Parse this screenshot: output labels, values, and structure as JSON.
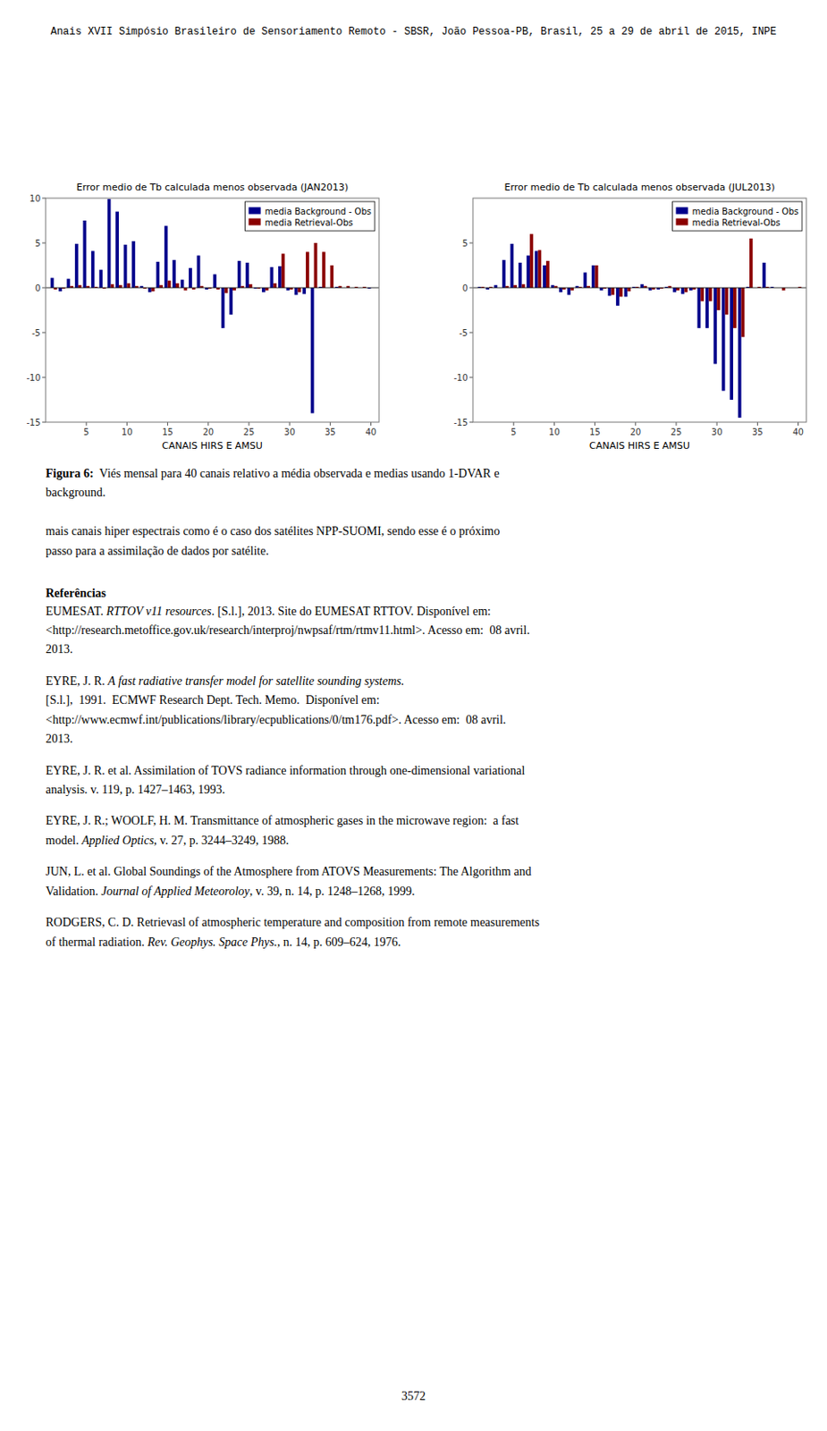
{
  "chart_data": [
    {
      "type": "bar",
      "title": "Error medio de Tb calculada menos observada (JAN2013)",
      "xlabel": "CANAIS HIRS E AMSU",
      "x": [
        1,
        2,
        3,
        4,
        5,
        6,
        7,
        8,
        9,
        10,
        11,
        12,
        13,
        14,
        15,
        16,
        17,
        18,
        19,
        20,
        21,
        22,
        23,
        24,
        25,
        26,
        27,
        28,
        29,
        30,
        31,
        32,
        33,
        34,
        35,
        36,
        37,
        38,
        39,
        40
      ],
      "xlim": [
        0,
        41
      ],
      "xticks": [
        5,
        10,
        15,
        20,
        25,
        30,
        35,
        40
      ],
      "ylim": [
        -15,
        10
      ],
      "yticks": [
        -15,
        -10,
        -5,
        0,
        5,
        10
      ],
      "legend": "upper right",
      "series": [
        {
          "name": "media Background - Obs",
          "color": "#00008B",
          "values": [
            1.1,
            -0.4,
            1.0,
            4.9,
            7.5,
            4.1,
            2.0,
            9.9,
            8.5,
            4.8,
            5.2,
            0.2,
            -0.5,
            2.9,
            6.9,
            3.1,
            0.9,
            2.2,
            3.6,
            -0.2,
            1.5,
            -4.5,
            -3.0,
            3.0,
            2.8,
            -0.1,
            -0.5,
            2.3,
            2.4,
            -0.3,
            -0.8,
            -0.7,
            -14.0,
            0.1,
            0.0,
            0.1,
            0.0,
            0.0,
            0.0,
            -0.1
          ]
        },
        {
          "name": "media Retrieval-Obs",
          "color": "#8B0000",
          "values": [
            -0.2,
            -0.1,
            0.2,
            0.3,
            0.2,
            0.1,
            -0.1,
            0.4,
            0.3,
            0.5,
            0.2,
            -0.1,
            -0.4,
            0.3,
            0.8,
            0.5,
            -0.3,
            -0.2,
            0.2,
            -0.1,
            -0.2,
            -0.6,
            -0.3,
            0.2,
            0.4,
            -0.1,
            -0.3,
            0.5,
            3.8,
            -0.2,
            -0.5,
            4.0,
            5.0,
            4.0,
            2.5,
            0.2,
            0.2,
            0.1,
            0.1,
            0.0
          ]
        }
      ]
    },
    {
      "type": "bar",
      "title": "Error medio de Tb calculada menos observada (JUL2013)",
      "xlabel": "CANAIS HIRS E AMSU",
      "x": [
        1,
        2,
        3,
        4,
        5,
        6,
        7,
        8,
        9,
        10,
        11,
        12,
        13,
        14,
        15,
        16,
        17,
        18,
        19,
        20,
        21,
        22,
        23,
        24,
        25,
        26,
        27,
        28,
        29,
        30,
        31,
        32,
        33,
        34,
        35,
        36,
        37,
        38,
        39,
        40
      ],
      "xlim": [
        0,
        41
      ],
      "xticks": [
        5,
        10,
        15,
        20,
        25,
        30,
        35,
        40
      ],
      "ylim": [
        -15,
        10
      ],
      "yticks": [
        -15,
        -10,
        -5,
        0,
        5
      ],
      "legend": "upper right",
      "series": [
        {
          "name": "media Background - Obs",
          "color": "#00008B",
          "values": [
            0.1,
            -0.2,
            0.3,
            3.1,
            4.9,
            2.8,
            3.6,
            4.1,
            2.5,
            0.3,
            -0.5,
            -0.8,
            0.2,
            1.7,
            2.5,
            -0.3,
            -0.9,
            -2.0,
            -1.0,
            0.1,
            0.4,
            -0.3,
            -0.2,
            0.1,
            -0.5,
            -0.7,
            -0.3,
            -4.5,
            -4.5,
            -8.5,
            -11.5,
            -12.5,
            -14.5,
            0.1,
            0.0,
            2.8,
            0.1,
            0.0,
            0.0,
            0.0
          ]
        },
        {
          "name": "media Retrieval-Obs",
          "color": "#8B0000",
          "values": [
            0.1,
            0.1,
            0.0,
            0.2,
            0.3,
            0.4,
            6.0,
            4.2,
            3.0,
            0.2,
            -0.2,
            -0.3,
            0.1,
            0.2,
            2.5,
            -0.1,
            -0.8,
            -1.0,
            -0.4,
            0.1,
            0.2,
            -0.2,
            -0.1,
            0.2,
            -0.3,
            -0.5,
            -0.2,
            -1.5,
            -1.5,
            -2.5,
            -3.0,
            -4.5,
            -5.5,
            5.5,
            0.1,
            0.1,
            0.0,
            -0.3,
            0.0,
            0.1
          ]
        }
      ]
    }
  ],
  "page": {
    "header": "Anais XVII Simpósio Brasileiro de Sensoriamento Remoto - SBSR, João Pessoa-PB, Brasil, 25 a 29 de abril de 2015, INPE",
    "caption": [
      [
        {
          "text": "Figura 6:",
          "style": "bold"
        },
        {
          "text": "  Viés mensal para 40 canais relativo a média observada e medias usando 1-DVAR e"
        }
      ],
      [
        {
          "text": "background."
        }
      ]
    ],
    "paragraph": [
      [
        {
          "text": "mais canais hiper espectrais como é o caso dos satélites NPP-SUOMI, sendo esse é o próximo"
        }
      ],
      [
        {
          "text": "passo para a assimilação de dados por satélite."
        }
      ]
    ],
    "references_title": "Referências",
    "references": [
      [
        [
          {
            "text": "EUMESAT. "
          },
          {
            "text": "RTTOV v11 resources",
            "style": "italic"
          },
          {
            "text": ". [S.l.], 2013. Site do EUMESAT RTTOV. Disponível em:"
          }
        ],
        [
          {
            "text": "<http://research.metoffice.gov.uk/research/interproj/nwpsaf/rtm/rtmv11.html>. Acesso em:  08 avril."
          }
        ],
        [
          {
            "text": "2013."
          }
        ]
      ],
      [
        [
          {
            "text": "EYRE, J. R. "
          },
          {
            "text": "A fast radiative transfer model for satellite sounding systems.",
            "style": "italic"
          }
        ],
        [
          {
            "text": "[S.l.],  1991.  ECMWF Research Dept. Tech. Memo.  Disponível em:"
          }
        ],
        [
          {
            "text": "<http://www.ecmwf.int/publications/library/ecpublications/0/tm176.pdf>. Acesso em:  08 avril."
          }
        ],
        [
          {
            "text": "2013."
          }
        ]
      ],
      [
        [
          {
            "text": "EYRE, J. R. et al. Assimilation of TOVS radiance information through one-dimensional variational"
          }
        ],
        [
          {
            "text": "analysis. v. 119, p. 1427–1463, 1993."
          }
        ]
      ],
      [
        [
          {
            "text": "EYRE, J. R.; WOOLF, H. M. Transmittance of atmospheric gases in the microwave region:  a fast"
          }
        ],
        [
          {
            "text": "model. "
          },
          {
            "text": "Applied Optics",
            "style": "italic"
          },
          {
            "text": ", v. 27, p. 3244–3249, 1988."
          }
        ]
      ],
      [
        [
          {
            "text": "JUN, L. et al. Global Soundings of the Atmosphere from ATOVS Measurements: The Algorithm and"
          }
        ],
        [
          {
            "text": "Validation. "
          },
          {
            "text": "Journal of Applied Meteoroloy",
            "style": "italic"
          },
          {
            "text": ", v. 39, n. 14, p. 1248–1268, 1999."
          }
        ]
      ],
      [
        [
          {
            "text": "RODGERS, C. D. Retrievasl of atmospheric temperature and composition from remote measurements"
          }
        ],
        [
          {
            "text": "of thermal radiation. "
          },
          {
            "text": "Rev. Geophys. Space Phys.",
            "style": "italic"
          },
          {
            "text": ", n. 14, p. 609–624, 1976."
          }
        ]
      ]
    ],
    "page_number": "3572"
  }
}
